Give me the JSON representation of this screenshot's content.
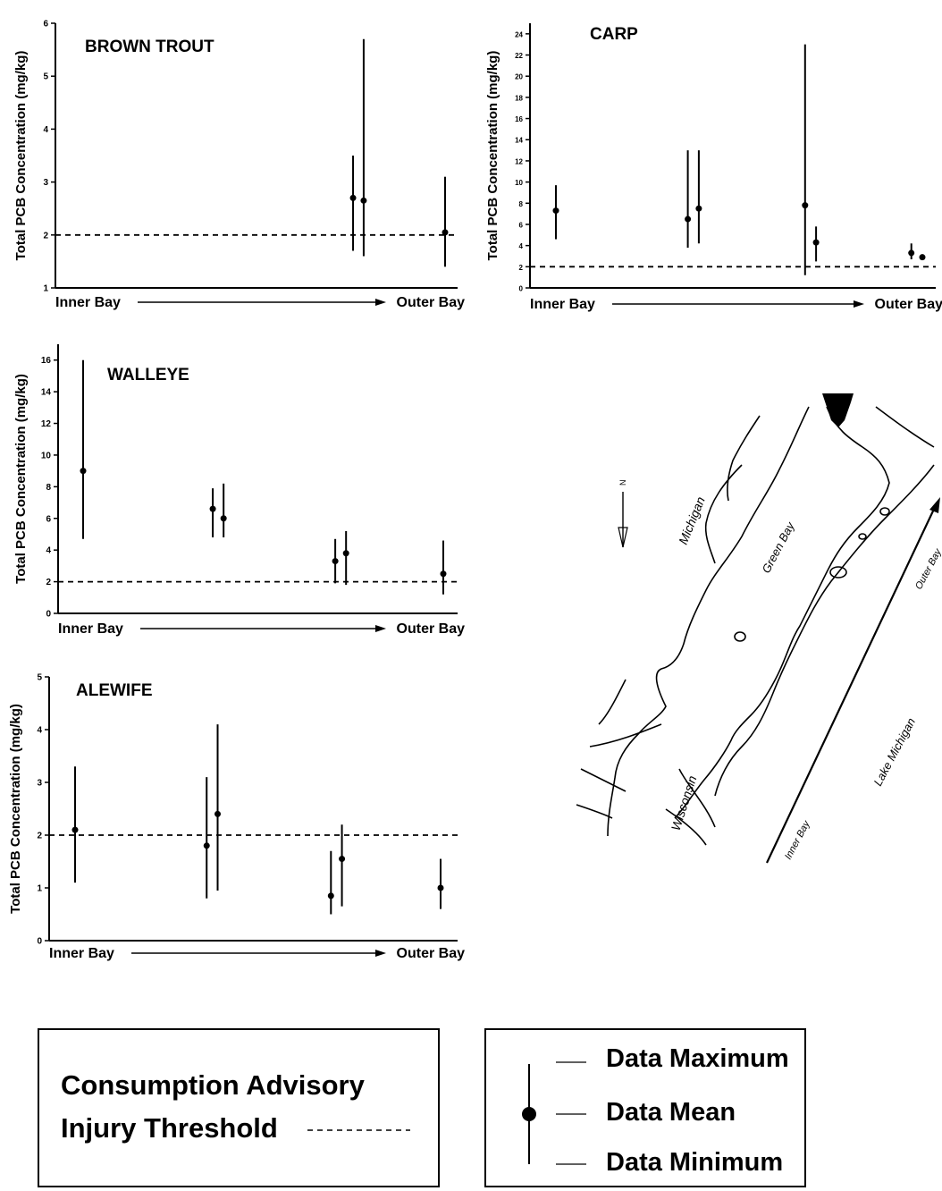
{
  "chart_data": [
    {
      "type": "scatter",
      "title": "BROWN TROUT",
      "ylabel": "Total PCB Concentration (mg/kg)",
      "x_start_label": "Inner Bay",
      "x_end_label": "Outer Bay",
      "ylim": [
        1,
        6
      ],
      "yticks": [
        1,
        2,
        3,
        4,
        5,
        6
      ],
      "threshold": 2,
      "points": [
        {
          "x": 0.74,
          "mean": 2.7,
          "min": 1.7,
          "max": 3.5
        },
        {
          "x": 0.77,
          "mean": 2.65,
          "min": 1.6,
          "max": 5.7
        },
        {
          "x": 1.0,
          "mean": 2.05,
          "min": 1.4,
          "max": 3.1
        }
      ]
    },
    {
      "type": "scatter",
      "title": "CARP",
      "ylabel": "Total PCB Concentration (mg/kg)",
      "x_start_label": "Inner Bay",
      "x_end_label": "Outer Bay",
      "ylim": [
        0,
        25
      ],
      "yticks": [
        0,
        2,
        4,
        6,
        8,
        10,
        12,
        14,
        16,
        18,
        20,
        22,
        24
      ],
      "threshold": 2,
      "points": [
        {
          "x": 0.0,
          "mean": 7.3,
          "min": 4.6,
          "max": 9.7
        },
        {
          "x": 0.36,
          "mean": 6.5,
          "min": 3.8,
          "max": 13.0
        },
        {
          "x": 0.39,
          "mean": 7.5,
          "min": 4.2,
          "max": 13.0
        },
        {
          "x": 0.68,
          "mean": 7.8,
          "min": 1.2,
          "max": 23.0
        },
        {
          "x": 0.71,
          "mean": 4.3,
          "min": 2.5,
          "max": 5.8
        },
        {
          "x": 0.97,
          "mean": 3.3,
          "min": 2.7,
          "max": 4.2
        },
        {
          "x": 1.0,
          "mean": 2.9,
          "min": 2.9,
          "max": 2.9
        }
      ]
    },
    {
      "type": "scatter",
      "title": "WALLEYE",
      "ylabel": "Total PCB Concentration (mg/kg)",
      "x_start_label": "Inner Bay",
      "x_end_label": "Outer Bay",
      "ylim": [
        0,
        17
      ],
      "yticks": [
        0,
        2,
        4,
        6,
        8,
        10,
        12,
        14,
        16
      ],
      "threshold": 2,
      "points": [
        {
          "x": 0.0,
          "mean": 9.0,
          "min": 4.7,
          "max": 16.0
        },
        {
          "x": 0.36,
          "mean": 6.6,
          "min": 4.8,
          "max": 7.9
        },
        {
          "x": 0.39,
          "mean": 6.0,
          "min": 4.8,
          "max": 8.2
        },
        {
          "x": 0.7,
          "mean": 3.3,
          "min": 1.9,
          "max": 4.7
        },
        {
          "x": 0.73,
          "mean": 3.8,
          "min": 1.8,
          "max": 5.2
        },
        {
          "x": 1.0,
          "mean": 2.5,
          "min": 1.2,
          "max": 4.6
        }
      ]
    },
    {
      "type": "scatter",
      "title": "ALEWIFE",
      "ylabel": "Total PCB Concentration (mg/kg)",
      "x_start_label": "Inner Bay",
      "x_end_label": "Outer Bay",
      "ylim": [
        0,
        5
      ],
      "yticks": [
        0,
        1,
        2,
        3,
        4,
        5
      ],
      "threshold": 2,
      "points": [
        {
          "x": 0.0,
          "mean": 2.1,
          "min": 1.1,
          "max": 3.3
        },
        {
          "x": 0.36,
          "mean": 1.8,
          "min": 0.8,
          "max": 3.1
        },
        {
          "x": 0.39,
          "mean": 2.4,
          "min": 0.95,
          "max": 4.1
        },
        {
          "x": 0.7,
          "mean": 0.85,
          "min": 0.5,
          "max": 1.7
        },
        {
          "x": 0.73,
          "mean": 1.55,
          "min": 0.65,
          "max": 2.2
        },
        {
          "x": 1.0,
          "mean": 1.0,
          "min": 0.6,
          "max": 1.55
        }
      ]
    }
  ],
  "map": {
    "labels": {
      "michigan": "Michigan",
      "green_bay": "Green Bay",
      "wisconsin": "Wisconsin",
      "lake_michigan": "Lake Michigan",
      "inner_bay": "Inner Bay",
      "outer_bay": "Outer Bay",
      "north": "N"
    }
  },
  "legend": {
    "threshold_line1": "Consumption Advisory",
    "threshold_line2": "Injury Threshold",
    "max_label": "Data Maximum",
    "mean_label": "Data Mean",
    "min_label": "Data Minimum"
  }
}
